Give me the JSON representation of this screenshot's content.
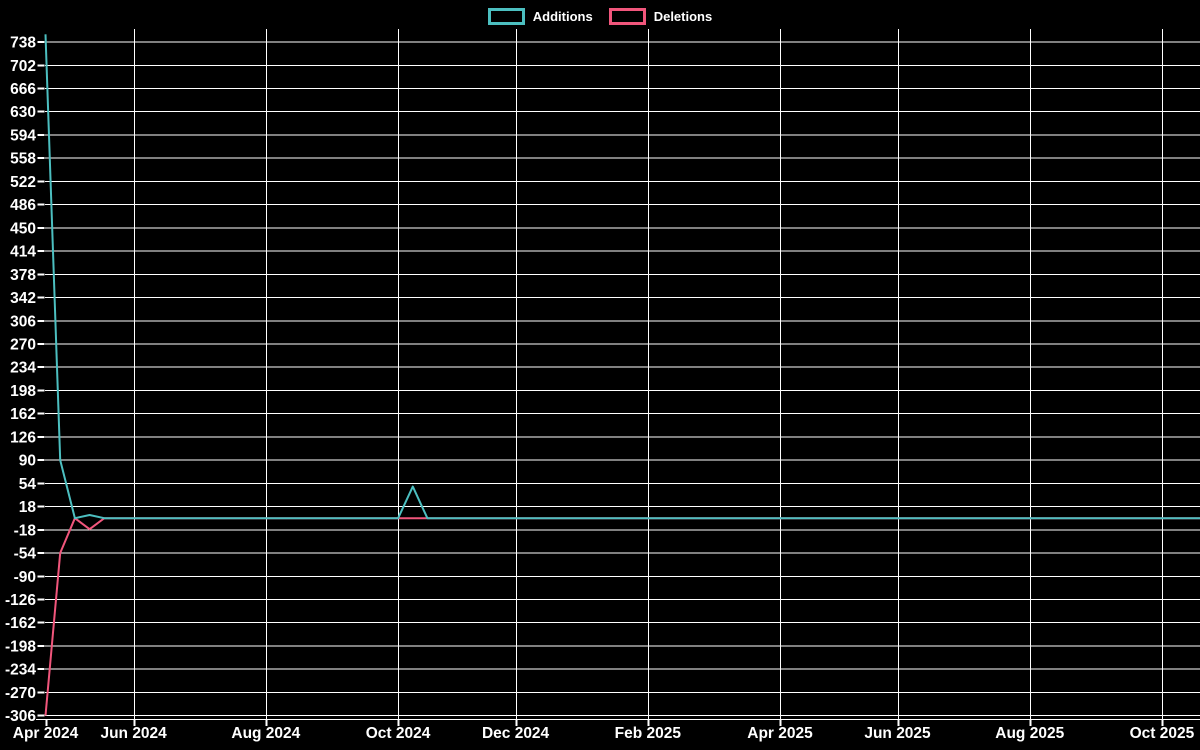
{
  "page": {
    "background": "#000000",
    "text_color": "#ffffff"
  },
  "legend": {
    "items": [
      {
        "label": "Additions",
        "color": "#4cbfc0"
      },
      {
        "label": "Deletions",
        "color": "#f1567c"
      }
    ]
  },
  "chart_data": {
    "type": "line",
    "title": "",
    "xlabel": "",
    "ylabel": "",
    "background": "#000000",
    "grid": true,
    "grid_color": "#ffffff",
    "axis_color": "#ffffff",
    "tick_label_color": "#ffffff",
    "legend_position": "top-center",
    "y_step": 36,
    "ylim_labels": [
      -306,
      738
    ],
    "y_tick_labels": [
      738,
      702,
      666,
      630,
      594,
      558,
      522,
      486,
      450,
      414,
      378,
      342,
      306,
      270,
      234,
      198,
      162,
      126,
      90,
      54,
      18,
      -18,
      -54,
      -90,
      -126,
      -162,
      -198,
      -234,
      -270,
      -306
    ],
    "x_ticks": [
      {
        "label": "Apr 2024",
        "week": 0
      },
      {
        "label": "Jun 2024",
        "week": 6
      },
      {
        "label": "Aug 2024",
        "week": 15
      },
      {
        "label": "Oct 2024",
        "week": 24
      },
      {
        "label": "Dec 2024",
        "week": 32
      },
      {
        "label": "Feb 2025",
        "week": 41
      },
      {
        "label": "Apr 2025",
        "week": 50
      },
      {
        "label": "Jun 2025",
        "week": 58
      },
      {
        "label": "Aug 2025",
        "week": 67
      },
      {
        "label": "Oct 2025",
        "week": 76
      }
    ],
    "weeks_total": 80,
    "series": [
      {
        "name": "Additions",
        "color": "#4cbfc0",
        "values": [
          750,
          90,
          0,
          5,
          0,
          0,
          0,
          0,
          0,
          0,
          0,
          0,
          0,
          0,
          0,
          0,
          0,
          0,
          0,
          0,
          0,
          0,
          0,
          0,
          0,
          49,
          0,
          0,
          0,
          0,
          0,
          0,
          0,
          0,
          0,
          0,
          0,
          0,
          0,
          0,
          0,
          0,
          0,
          0,
          0,
          0,
          0,
          0,
          0,
          0,
          0,
          0,
          0,
          0,
          0,
          0,
          0,
          0,
          0,
          0,
          0,
          0,
          0,
          0,
          0,
          0,
          0,
          0,
          0,
          0,
          0,
          0,
          0,
          0,
          0,
          0,
          0,
          0,
          0,
          0
        ]
      },
      {
        "name": "Deletions",
        "color": "#f1567c",
        "values": [
          -306,
          -54,
          0,
          -17,
          0,
          0,
          0,
          0,
          0,
          0,
          0,
          0,
          0,
          0,
          0,
          0,
          0,
          0,
          0,
          0,
          0,
          0,
          0,
          0,
          0,
          0,
          0,
          0,
          0,
          0,
          0,
          0,
          0,
          0,
          0,
          0,
          0,
          0,
          0,
          0,
          0,
          0,
          0,
          0,
          0,
          0,
          0,
          0,
          0,
          0,
          0,
          0,
          0,
          0,
          0,
          0,
          0,
          0,
          0,
          0,
          0,
          0,
          0,
          0,
          0,
          0,
          0,
          0,
          0,
          0,
          0,
          0,
          0,
          0,
          0,
          0,
          0,
          0,
          0,
          0
        ]
      }
    ]
  }
}
